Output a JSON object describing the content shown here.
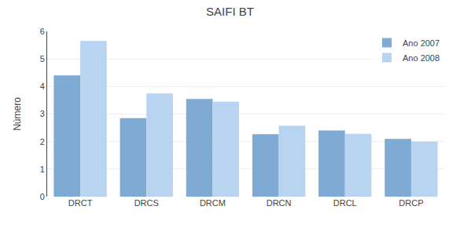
{
  "chart_data": {
    "type": "bar",
    "title": "SAIFI BT",
    "categories": [
      "DRCT",
      "DRCS",
      "DRCM",
      "DRCN",
      "DRCL",
      "DRCP"
    ],
    "series": [
      {
        "name": "Ano 2007",
        "color": "#7faad4",
        "values": [
          4.4,
          2.85,
          3.55,
          2.27,
          2.4,
          2.1
        ]
      },
      {
        "name": "Ano 2008",
        "color": "#b8d4f0",
        "values": [
          5.65,
          3.75,
          3.45,
          2.57,
          2.28,
          2.0
        ]
      }
    ],
    "ylabel": "Número",
    "ylim": [
      0,
      6
    ],
    "yticks": [
      0,
      1,
      2,
      3,
      4,
      5,
      6
    ],
    "grid": true,
    "legend": "upper right"
  }
}
